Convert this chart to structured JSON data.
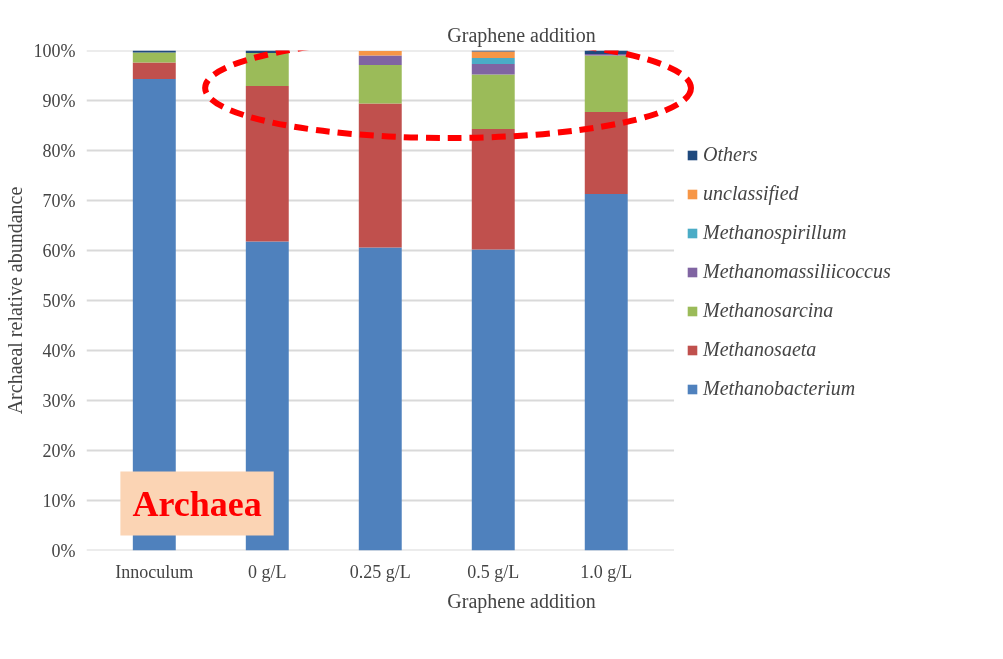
{
  "chart_data": {
    "type": "bar",
    "stacked": true,
    "title": "Graphene addition",
    "xlabel": "Graphene addition",
    "ylabel": "Archaeal relative abundance",
    "categories": [
      "Innoculum",
      "0 g/L",
      "0.25 g/L",
      "0.5 g/L",
      "1.0 g/L"
    ],
    "series": [
      {
        "name": "Methanobacterium",
        "color": "#4f81bd",
        "values": [
          94.3,
          61.8,
          60.6,
          60.2,
          71.3
        ]
      },
      {
        "name": "Methanosaeta",
        "color": "#c0504d",
        "values": [
          3.3,
          31.1,
          28.8,
          24.1,
          16.4
        ]
      },
      {
        "name": "Methanosarcina",
        "color": "#9bbb59",
        "values": [
          2.0,
          6.6,
          7.7,
          10.9,
          11.3
        ]
      },
      {
        "name": "Methanomassiliicoccus",
        "color": "#8064a2",
        "values": [
          0,
          0,
          1.9,
          2.1,
          0.3
        ]
      },
      {
        "name": "Methanospirillum",
        "color": "#4bacc6",
        "values": [
          0,
          0,
          0,
          1.2,
          0
        ]
      },
      {
        "name": "unclassified",
        "color": "#f79646",
        "values": [
          0,
          0,
          0.9,
          1.3,
          0
        ]
      },
      {
        "name": "Others",
        "color": "#1f497d",
        "values": [
          0.4,
          0.5,
          null,
          0.2,
          0.7
        ]
      }
    ],
    "ylim": [
      0,
      100
    ],
    "yticks": [
      {
        "value": 0,
        "label": "0%"
      },
      {
        "value": 10,
        "label": "10%"
      },
      {
        "value": 20,
        "label": "20%"
      },
      {
        "value": 30,
        "label": "30%"
      },
      {
        "value": 40,
        "label": "40%"
      },
      {
        "value": 50,
        "label": "50%"
      },
      {
        "value": 60,
        "label": "60%"
      },
      {
        "value": 70,
        "label": "70%"
      },
      {
        "value": 80,
        "label": "80%"
      },
      {
        "value": 90,
        "label": "90%"
      },
      {
        "value": 100,
        "label": "100%"
      }
    ],
    "grid": "y",
    "legend": "right",
    "annotations": [
      "Archaea"
    ]
  }
}
